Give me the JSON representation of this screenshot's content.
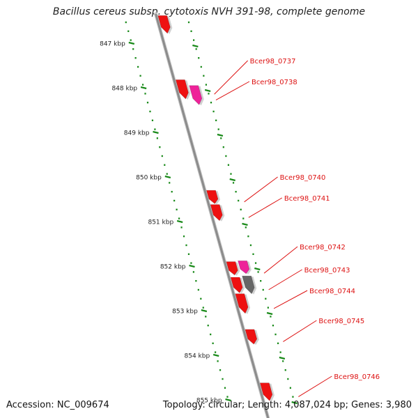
{
  "title": "Bacillus cereus subsp. cytotoxis NVH 391-98, complete genome",
  "footer": {
    "accession": "Accession: NC_009674",
    "summary": "Topology: circular; Length: 4,087,024 bp; Genes: 3,980"
  },
  "colors": {
    "backbone": "#8c8c8c",
    "tick": "#1a8a1a",
    "gene_red": "#ee1111",
    "gene_pink": "#ee2299",
    "gene_gray": "#666666",
    "label": "#dd1111"
  },
  "scale": {
    "ticks": [
      {
        "label": "847 kbp",
        "kbp": 847
      },
      {
        "label": "848 kbp",
        "kbp": 848
      },
      {
        "label": "849 kbp",
        "kbp": 849
      },
      {
        "label": "850 kbp",
        "kbp": 850
      },
      {
        "label": "851 kbp",
        "kbp": 851
      },
      {
        "label": "852 kbp",
        "kbp": 852
      },
      {
        "label": "853 kbp",
        "kbp": 853
      },
      {
        "label": "854 kbp",
        "kbp": 854
      },
      {
        "label": "855 kbp",
        "kbp": 855
      }
    ]
  },
  "genes": [
    {
      "kbp_start": 846.38,
      "kbp_end": 846.78,
      "color": "red",
      "label": ""
    },
    {
      "kbp_start": 847.82,
      "kbp_end": 848.25,
      "color": "red",
      "label": "Bcer98_0737"
    },
    {
      "kbp_start": 847.95,
      "kbp_end": 848.38,
      "color": "pink",
      "label": "Bcer98_0738"
    },
    {
      "kbp_start": 850.3,
      "kbp_end": 850.6,
      "color": "red",
      "label": "Bcer98_0740"
    },
    {
      "kbp_start": 850.62,
      "kbp_end": 850.98,
      "color": "red",
      "label": "Bcer98_0741"
    },
    {
      "kbp_start": 851.9,
      "kbp_end": 852.2,
      "color": "red",
      "label": "Bcer98_0742"
    },
    {
      "kbp_start": 851.88,
      "kbp_end": 852.17,
      "color": "pink",
      "label": ""
    },
    {
      "kbp_start": 852.25,
      "kbp_end": 852.6,
      "color": "red",
      "label": ""
    },
    {
      "kbp_start": 852.22,
      "kbp_end": 852.62,
      "color": "gray",
      "label": "Bcer98_0743"
    },
    {
      "kbp_start": 852.62,
      "kbp_end": 853.06,
      "color": "red",
      "label": "Bcer98_0744"
    },
    {
      "kbp_start": 853.42,
      "kbp_end": 853.75,
      "color": "red",
      "label": "Bcer98_0745"
    },
    {
      "kbp_start": 854.62,
      "kbp_end": 855.02,
      "color": "red",
      "label": "Bcer98_0746"
    }
  ]
}
